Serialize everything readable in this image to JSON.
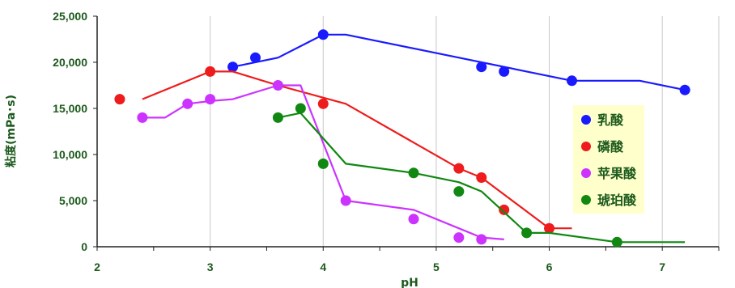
{
  "chart_data": {
    "type": "scatter",
    "xlabel": "pH",
    "ylabel": "粘度(mPa･s)",
    "xlim": [
      2,
      7.5
    ],
    "ylim": [
      0,
      25000
    ],
    "x_ticks": [
      "2",
      "3",
      "4",
      "5",
      "6",
      "7"
    ],
    "y_ticks": [
      "0",
      "5,000",
      "10,000",
      "15,000",
      "20,000",
      "25,000"
    ],
    "grid": "vertical",
    "legend_position": "right",
    "legend_background": "#ffffcc",
    "series": [
      {
        "name": "乳酸",
        "color": "#1a1aff",
        "points": [
          [
            3.2,
            19500
          ],
          [
            3.4,
            20500
          ],
          [
            4.0,
            23000
          ],
          [
            5.4,
            19500
          ],
          [
            5.6,
            19000
          ],
          [
            6.2,
            18000
          ],
          [
            7.2,
            17000
          ]
        ],
        "line": [
          [
            3.2,
            19500
          ],
          [
            3.6,
            20500
          ],
          [
            4.0,
            23000
          ],
          [
            4.2,
            23000
          ],
          [
            5.0,
            21000
          ],
          [
            5.8,
            19000
          ],
          [
            6.2,
            18000
          ],
          [
            6.8,
            18000
          ],
          [
            7.2,
            17000
          ]
        ]
      },
      {
        "name": "磷酸",
        "color": "#ee1c1c",
        "points": [
          [
            2.2,
            16000
          ],
          [
            3.0,
            19000
          ],
          [
            4.0,
            15500
          ],
          [
            5.2,
            8500
          ],
          [
            5.4,
            7500
          ],
          [
            5.6,
            4000
          ],
          [
            6.0,
            2000
          ]
        ],
        "line": [
          [
            2.4,
            16000
          ],
          [
            3.0,
            19000
          ],
          [
            3.2,
            19000
          ],
          [
            3.6,
            17500
          ],
          [
            4.2,
            15500
          ],
          [
            5.2,
            8500
          ],
          [
            5.4,
            7500
          ],
          [
            6.0,
            2000
          ],
          [
            6.2,
            2000
          ]
        ]
      },
      {
        "name": "苹果酸",
        "color": "#cc33ff",
        "points": [
          [
            2.4,
            14000
          ],
          [
            2.8,
            15500
          ],
          [
            3.0,
            16000
          ],
          [
            3.6,
            17500
          ],
          [
            4.2,
            5000
          ],
          [
            4.8,
            3000
          ],
          [
            5.2,
            1000
          ],
          [
            5.4,
            800
          ]
        ],
        "line": [
          [
            2.4,
            14000
          ],
          [
            2.6,
            14000
          ],
          [
            2.8,
            15500
          ],
          [
            3.0,
            15800
          ],
          [
            3.2,
            16000
          ],
          [
            3.6,
            17500
          ],
          [
            3.8,
            17500
          ],
          [
            4.2,
            5000
          ],
          [
            4.8,
            4000
          ],
          [
            5.2,
            2000
          ],
          [
            5.4,
            1000
          ],
          [
            5.6,
            800
          ]
        ]
      },
      {
        "name": "琥珀酸",
        "color": "#118811",
        "points": [
          [
            3.6,
            14000
          ],
          [
            3.8,
            15000
          ],
          [
            4.0,
            9000
          ],
          [
            4.8,
            8000
          ],
          [
            5.2,
            6000
          ],
          [
            5.8,
            1500
          ],
          [
            6.6,
            500
          ]
        ],
        "line": [
          [
            3.6,
            14000
          ],
          [
            3.8,
            14500
          ],
          [
            4.2,
            9000
          ],
          [
            4.8,
            8000
          ],
          [
            5.2,
            7000
          ],
          [
            5.4,
            6000
          ],
          [
            5.8,
            1500
          ],
          [
            6.0,
            1500
          ],
          [
            6.6,
            500
          ],
          [
            7.2,
            500
          ]
        ]
      }
    ]
  }
}
